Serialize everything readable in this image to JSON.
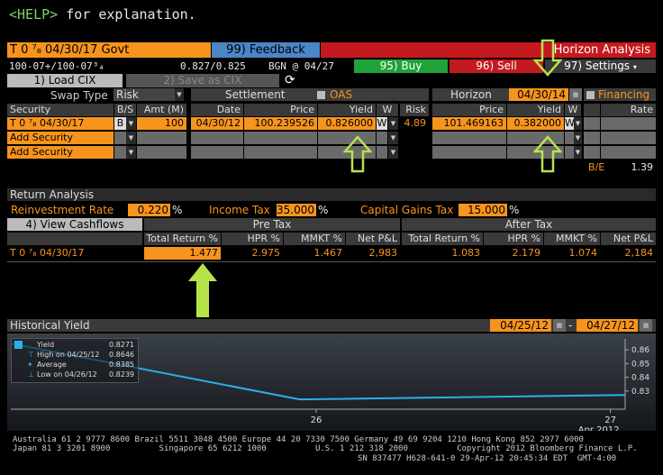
{
  "help": {
    "tag": "<HELP>",
    "text": " for explanation."
  },
  "titlebar": {
    "security": "T 0 ⁷₈ 04/30/17 Govt",
    "feedback": "99) Feedback",
    "horizon": "Horizon Analysis"
  },
  "quote": {
    "price": "100-07+/100-07³₄",
    "yield": "0.827/0.825",
    "source": "BGN @ 04/27"
  },
  "actions": {
    "buy": "95) Buy",
    "sell": "96) Sell",
    "settings": "97) Settings",
    "load": "1) Load CIX",
    "save": "2) Save as CIX"
  },
  "swap": {
    "label": "Swap Type",
    "value": "Risk"
  },
  "settlement": {
    "label": "Settlement",
    "oas": "OAS"
  },
  "horizon": {
    "label": "Horizon",
    "date": "04/30/14",
    "financing": "Financing"
  },
  "sec_table": {
    "headers": [
      "Security",
      "B/S",
      "Amt (M)"
    ],
    "rows": [
      {
        "security": "T 0 ⁷₈ 04/30/17",
        "bs": "B",
        "amt": "100"
      },
      {
        "security": "Add Security",
        "bs": "",
        "amt": ""
      },
      {
        "security": "Add Security",
        "bs": "",
        "amt": ""
      }
    ]
  },
  "settle_table": {
    "headers": [
      "Date",
      "Price",
      "Yield",
      "W",
      "Risk"
    ],
    "row": {
      "date": "04/30/12",
      "price": "100.239526",
      "yield": "0.826000",
      "w": "W",
      "risk": "4.89"
    }
  },
  "horizon_table": {
    "headers": [
      "Price",
      "Yield",
      "W",
      "Rate"
    ],
    "row": {
      "price": "101.469163",
      "yield": "0.382000",
      "w": "W"
    },
    "be_label": "B/E",
    "be_value": "1.39"
  },
  "return_analysis": {
    "title": "Return Analysis",
    "reinv_label": "Reinvestment Rate",
    "reinv_value": "0.220",
    "reinv_unit": "%",
    "income_label": "Income Tax",
    "income_value": "35.000",
    "income_unit": "%",
    "cg_label": "Capital Gains Tax",
    "cg_value": "15.000",
    "cg_unit": "%",
    "view_btn": "4) View Cashflows",
    "pretax": "Pre Tax",
    "aftertax": "After Tax",
    "headers": [
      "Total Return %",
      "HPR %",
      "MMKT %",
      "Net P&L",
      "Total Return %",
      "HPR %",
      "MMKT %",
      "Net P&L"
    ],
    "row_label": "T 0 ⁷₈ 04/30/17",
    "values": [
      "1.477",
      "2.975",
      "1.467",
      "2,983",
      "1.083",
      "2.179",
      "1.074",
      "2,184"
    ]
  },
  "historical": {
    "title": "Historical Yield",
    "from": "04/25/12",
    "to": "04/27/12",
    "dash": "-",
    "legend": [
      {
        "label": "Yield",
        "value": "0.8271"
      },
      {
        "label": "High on 04/25/12",
        "value": "0.8646"
      },
      {
        "label": "Average",
        "value": "0.8385"
      },
      {
        "label": "Low on 04/26/12",
        "value": "0.8239"
      }
    ],
    "yticks": [
      "0.86",
      "0.85",
      "0.84",
      "0.83"
    ],
    "xticks": [
      "26",
      "27"
    ],
    "xsub": "Apr 2012",
    "series_x": [
      0,
      0.47,
      1.0
    ],
    "series_y": [
      0.8646,
      0.8239,
      0.8271
    ],
    "ylim": [
      0.822,
      0.868
    ],
    "line_color": "#2ab0e8"
  },
  "footer": {
    "line1": "Australia 61 2 9777 8600 Brazil 5511 3048 4500 Europe 44 20 7330 7500 Germany 49 69 9204 1210 Hong Kong 852 2977 6000",
    "line2": "Japan 81 3 3201 8900          Singapore 65 6212 1000          U.S. 1 212 318 2000          Copyright 2012 Bloomberg Finance L.P.",
    "line3": "SN 837477 H628-641-0 29-Apr-12 20:45:34 EDT  GMT-4:00"
  }
}
